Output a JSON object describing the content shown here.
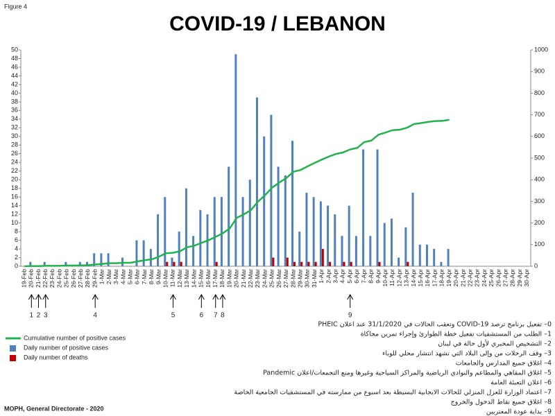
{
  "chart_data": {
    "type": "bar",
    "figure_label": "Figure 4",
    "title": "COVID-19 / LEBANON",
    "source": "MOPH, General Directorate - 2020",
    "categories": [
      "19-Feb",
      "20-Feb",
      "21-Feb",
      "22-Feb",
      "23-Feb",
      "24-Feb",
      "25-Feb",
      "26-Feb",
      "27-Feb",
      "28-Feb",
      "29-Feb",
      "1-Mar",
      "2-Mar",
      "3-Mar",
      "4-Mar",
      "5-Mar",
      "6-Mar",
      "7-Mar",
      "8-Mar",
      "9-Mar",
      "10-Mar",
      "11-Mar",
      "12-Mar",
      "13-Mar",
      "14-Mar",
      "15-Mar",
      "16-Mar",
      "17-Mar",
      "18-Mar",
      "19-Mar",
      "20-Mar",
      "21-Mar",
      "22-Mar",
      "23-Mar",
      "24-Mar",
      "25-Mar",
      "26-Mar",
      "27-Mar",
      "28-Mar",
      "29-Mar",
      "30-Mar",
      "31-Mar",
      "1-Apr",
      "2-Apr",
      "3-Apr",
      "4-Apr",
      "5-Apr",
      "6-Apr",
      "7-Apr",
      "8-Apr",
      "9-Apr",
      "10-Apr",
      "11-Apr",
      "12-Apr",
      "13-Apr",
      "14-Apr",
      "15-Apr",
      "16-Apr",
      "17-Apr",
      "18-Apr",
      "19-Apr",
      "20-Apr",
      "21-Apr",
      "22-Apr",
      "23-Apr",
      "24-Apr",
      "25-Apr",
      "26-Apr",
      "27-Apr",
      "28-Apr",
      "29-Apr",
      "30-Apr"
    ],
    "series": [
      {
        "name": "Cumulative number of positive cases",
        "color": "#22b14c",
        "kind": "line",
        "axis": "y2",
        "values": [
          0,
          1,
          1,
          2,
          2,
          2,
          3,
          3,
          4,
          5,
          8,
          11,
          14,
          14,
          16,
          16,
          22,
          28,
          32,
          44,
          60,
          62,
          70,
          88,
          95,
          108,
          120,
          136,
          152,
          175,
          224,
          240,
          260,
          299,
          329,
          364,
          387,
          408,
          437,
          445,
          462,
          478,
          493,
          507,
          519,
          526,
          540,
          547,
          574,
          581,
          608,
          618,
          629,
          631,
          640,
          657,
          662,
          667,
          671,
          672,
          677,
          null,
          null,
          null,
          null,
          null,
          null,
          null,
          null,
          null,
          null,
          null
        ]
      },
      {
        "name": "Daily number of positive cases",
        "color": "#4f81bd",
        "kind": "bar",
        "values": [
          0,
          1,
          0,
          1,
          0,
          0,
          1,
          0,
          1,
          1,
          3,
          3,
          3,
          0,
          2,
          0,
          6,
          6,
          4,
          12,
          16,
          2,
          8,
          18,
          7,
          13,
          12,
          16,
          16,
          23,
          49,
          16,
          20,
          39,
          30,
          35,
          23,
          21,
          29,
          8,
          17,
          16,
          15,
          14,
          12,
          7,
          14,
          7,
          27,
          7,
          27,
          10,
          11,
          2,
          9,
          17,
          5,
          5,
          4,
          1,
          4,
          null,
          null,
          null,
          null,
          null,
          null,
          null,
          null,
          null,
          null,
          null
        ]
      },
      {
        "name": "Daily number of deaths",
        "color": "#c00000",
        "kind": "bar",
        "values": [
          0,
          0,
          0,
          0,
          0,
          0,
          0,
          0,
          0,
          0,
          0,
          0,
          0,
          0,
          0,
          0,
          0,
          0,
          0,
          0,
          1,
          1,
          1,
          0,
          0,
          0,
          0,
          1,
          0,
          0,
          0,
          0,
          0,
          0,
          0,
          2,
          0,
          2,
          1,
          1,
          1,
          1,
          4,
          1,
          0,
          1,
          1,
          0,
          0,
          0,
          1,
          0,
          0,
          0,
          1,
          0,
          0,
          0,
          0,
          0,
          0,
          null,
          null,
          null,
          null,
          null,
          null,
          null,
          null,
          null,
          null,
          null
        ]
      }
    ],
    "ylim": [
      0,
      50
    ],
    "yticks": [
      0,
      2,
      4,
      6,
      8,
      10,
      12,
      14,
      16,
      18,
      20,
      22,
      24,
      26,
      28,
      30,
      32,
      34,
      36,
      38,
      40,
      42,
      44,
      46,
      48,
      50
    ],
    "y2lim": [
      0,
      1000
    ],
    "y2ticks": [
      0,
      100,
      200,
      300,
      400,
      500,
      600,
      700,
      800,
      900,
      1000
    ],
    "grid": false,
    "annotations": [
      {
        "label": "1",
        "category": "20-Feb"
      },
      {
        "label": "2",
        "category": "21-Feb"
      },
      {
        "label": "3",
        "category": "22-Feb"
      },
      {
        "label": "4",
        "category": "29-Feb"
      },
      {
        "label": "5",
        "category": "11-Mar"
      },
      {
        "label": "6",
        "category": "15-Mar"
      },
      {
        "label": "7",
        "category": "17-Mar"
      },
      {
        "label": "8",
        "category": "18-Mar"
      },
      {
        "label": "9",
        "category": "5-Apr"
      }
    ],
    "notes": [
      "0– تفعيل برنامج ترصد COVID-19 وتعقب الحالات في 31/1/2020 عند اعلان PHEIC",
      "1– الطلب من المستشفيات تفعيل خطة الطوارئ وإجراء تمرين محاكاة",
      "2– التشخيص المخبري لأول حالة في لبنان",
      "3– وقف الرحلات من وإلى البلاد التي تشهد انتشار محلي للوباء",
      "4– اغلاق جميع المدارس والجامعات",
      "5– اغلاق المقاهي والمطاعم والنوادي الرياضية والمراكز السياحية وغيرها ومنع التجمعات/اعلان Pandemic",
      "6– اعلان التعبئة العامة",
      "7– اعتماد الوزارة للعزل المنزلي للحالات الايجابية البسيطة بعد اسبوع من ممارسته في المستشفيات الجامعية الخاصة",
      "8– اغلاق جميع نقاط الدخول والخروج",
      "9– بداية عودة المغتربين"
    ]
  }
}
